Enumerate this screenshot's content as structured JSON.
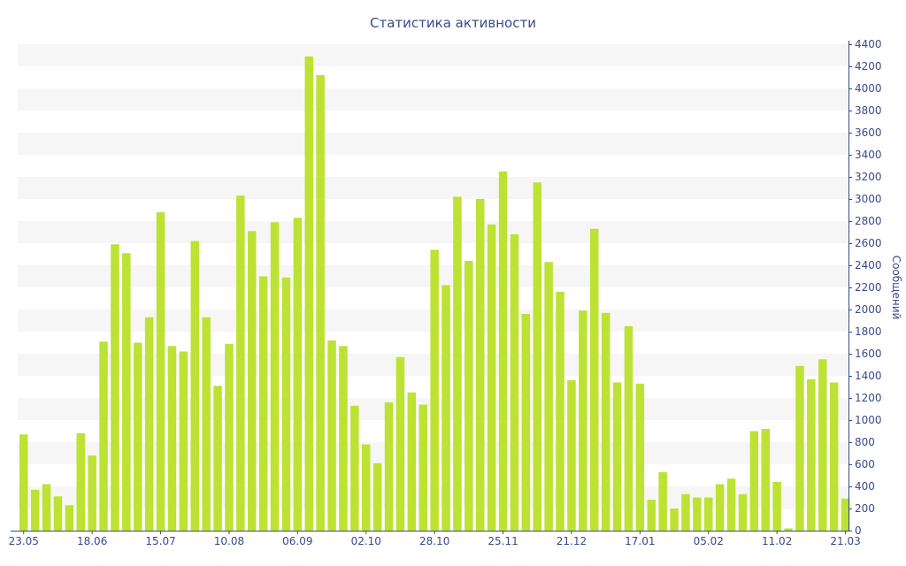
{
  "chart_data": {
    "type": "bar",
    "title": "Статистика активности",
    "ylabel": "Сообщений",
    "xlabel": "",
    "ylim": [
      0,
      4400
    ],
    "y_ticks": [
      0,
      200,
      400,
      600,
      800,
      1000,
      1200,
      1400,
      1600,
      1800,
      2000,
      2200,
      2400,
      2600,
      2800,
      3000,
      3200,
      3400,
      3600,
      3800,
      4000,
      4200,
      4400
    ],
    "y_axis_side": "right",
    "grid": "horizontal alternating bands",
    "bar_color": "#bde233",
    "x_tick_labels": [
      {
        "label": "23.05",
        "index": 0
      },
      {
        "label": "18.06",
        "index": 6
      },
      {
        "label": "15.07",
        "index": 12
      },
      {
        "label": "10.08",
        "index": 18
      },
      {
        "label": "06.09",
        "index": 24
      },
      {
        "label": "02.10",
        "index": 30
      },
      {
        "label": "28.10",
        "index": 36
      },
      {
        "label": "25.11",
        "index": 42
      },
      {
        "label": "21.12",
        "index": 48
      },
      {
        "label": "17.01",
        "index": 54
      },
      {
        "label": "05.02",
        "index": 60
      },
      {
        "label": "11.02",
        "index": 66
      },
      {
        "label": "21.03",
        "index": 72
      }
    ],
    "values": [
      870,
      370,
      420,
      310,
      230,
      880,
      680,
      1710,
      2590,
      2510,
      1700,
      1930,
      2880,
      1670,
      1620,
      2620,
      1930,
      1310,
      1690,
      3030,
      2710,
      2300,
      2790,
      2290,
      2830,
      4290,
      4120,
      1720,
      1670,
      1130,
      780,
      610,
      1160,
      1570,
      1250,
      1140,
      2540,
      2220,
      3020,
      2440,
      3000,
      2770,
      3250,
      2680,
      1960,
      3150,
      2430,
      2160,
      1360,
      1990,
      2730,
      1970,
      1340,
      1850,
      1330,
      280,
      530,
      200,
      330,
      300,
      300,
      420,
      470,
      330,
      900,
      920,
      440,
      20,
      1490,
      1370,
      1550,
      1340,
      290
    ]
  }
}
